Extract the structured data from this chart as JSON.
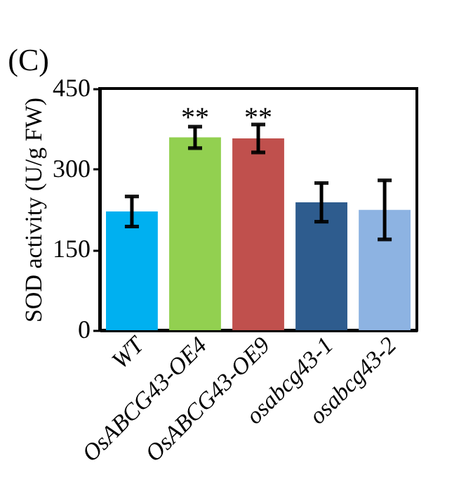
{
  "chart_data": {
    "type": "bar",
    "ylabel": "SOD activity (U/g FW)",
    "categories": [
      "WT",
      "OsABCG43-OE4",
      "OsABCG43-OE9",
      "osabcg43-1",
      "osabcg43-2"
    ],
    "values": [
      221,
      359,
      357,
      238,
      224
    ],
    "colors": [
      "#00b0f0",
      "#92d050",
      "#c0504d",
      "#2e5c8e",
      "#8db3e2"
    ],
    "errors": [
      28,
      20,
      26,
      36,
      55
    ],
    "ylim": [
      0,
      450
    ],
    "yticks": [
      0,
      150,
      300,
      450
    ],
    "grid": false,
    "annotations": [
      "(C)",
      {
        "text": "**",
        "x": "OsABCG43-OE4",
        "y": 395
      },
      {
        "text": "**",
        "x": "OsABCG43-OE9",
        "y": 395
      }
    ]
  }
}
